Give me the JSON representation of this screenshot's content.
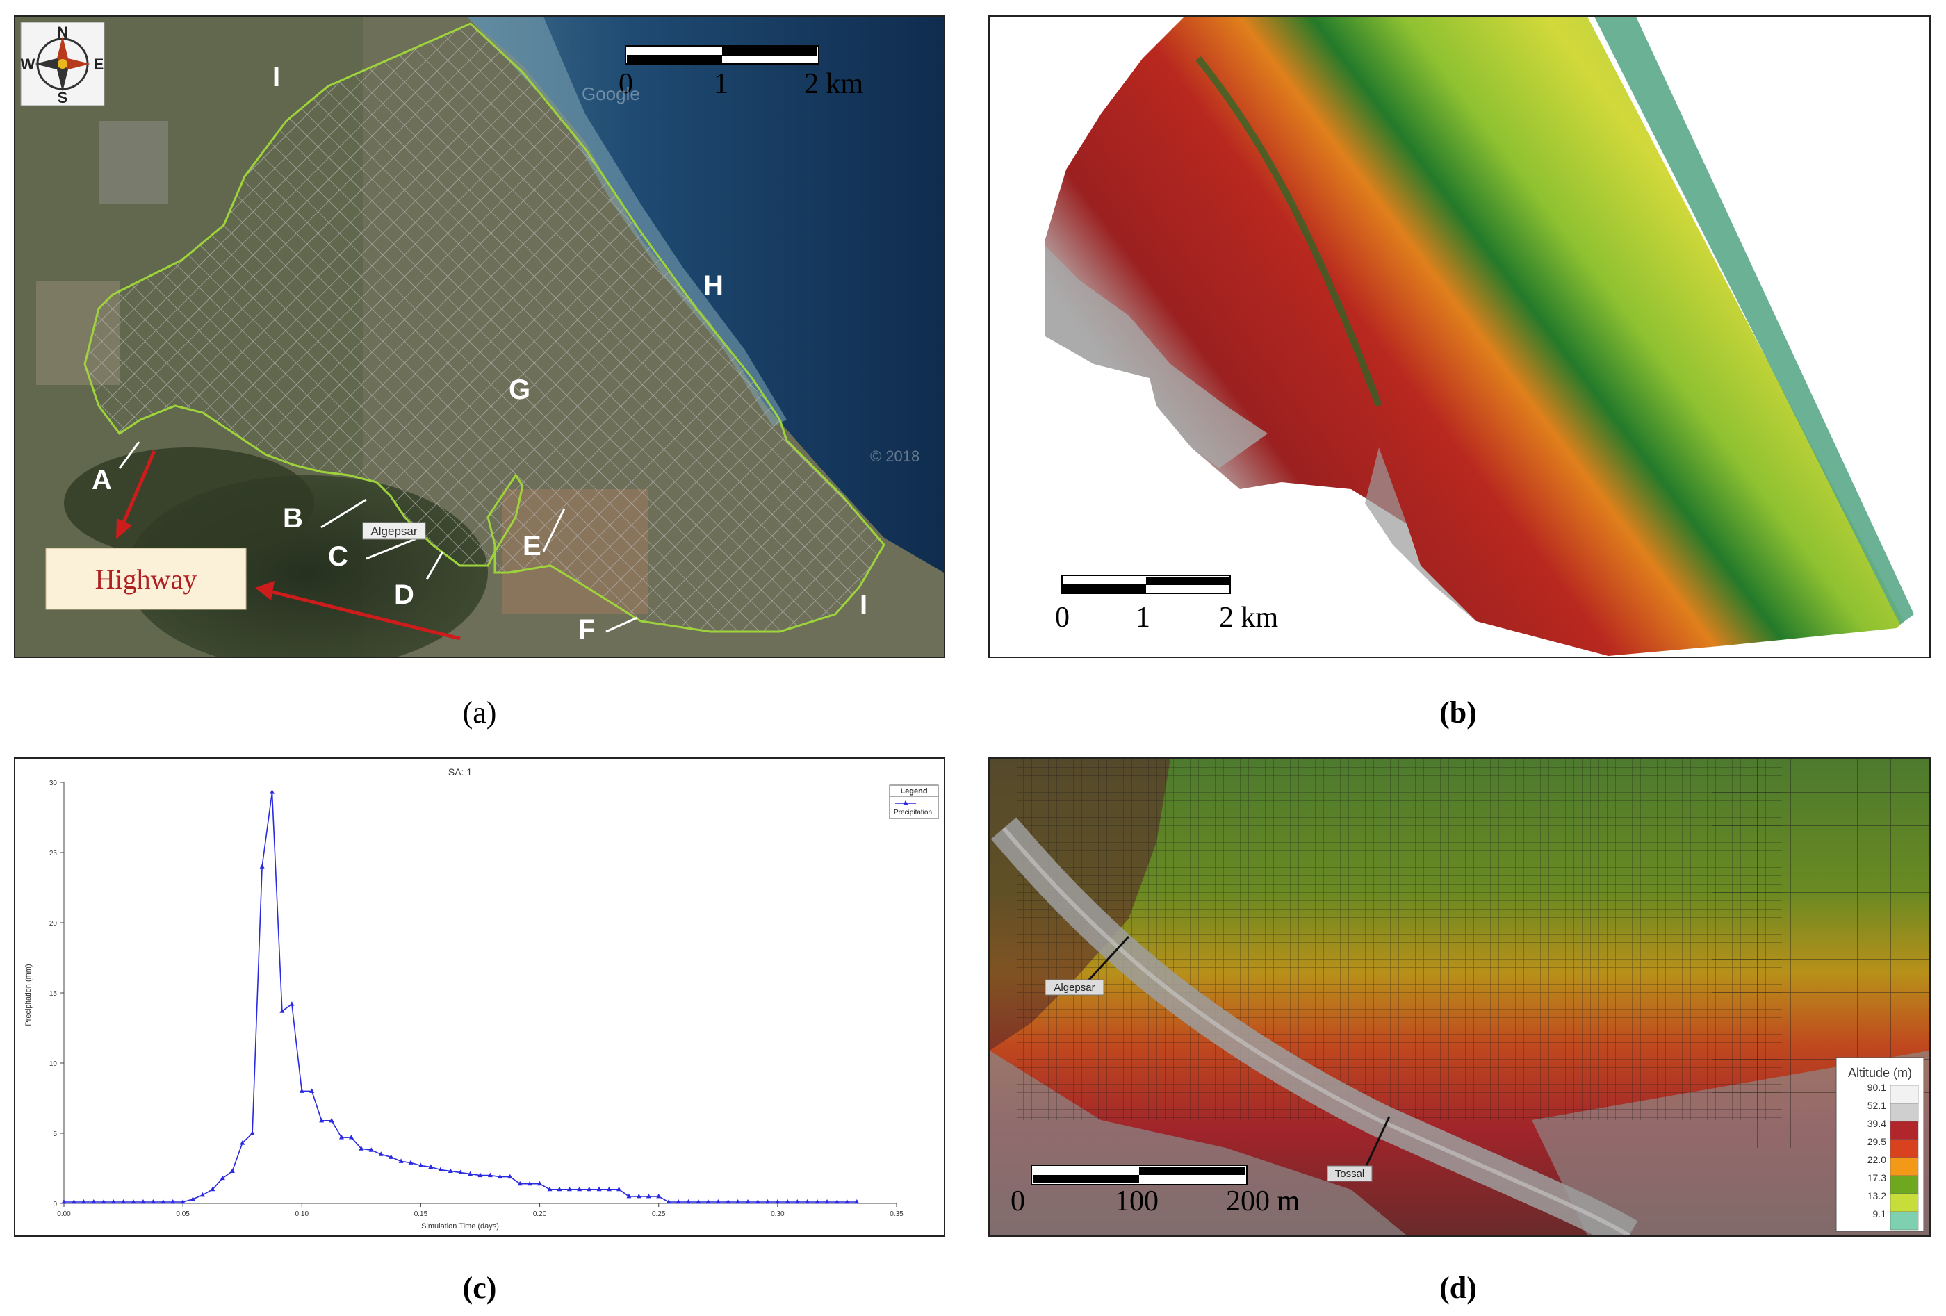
{
  "panel_a": {
    "compass": {
      "n": "N",
      "s": "S",
      "e": "E",
      "w": "W"
    },
    "scale": {
      "t0": "0",
      "t1": "1",
      "t2": "2 km"
    },
    "letters": {
      "A": "A",
      "B": "B",
      "C": "C",
      "D": "D",
      "E": "E",
      "F": "F",
      "G": "G",
      "H": "H",
      "I1": "I",
      "I2": "I"
    },
    "place_tag": "Algepsar",
    "highway_label": "Highway",
    "watermark_copyright": "© 2018",
    "watermark_google": "Google"
  },
  "panel_b": {
    "scale": {
      "t0": "0",
      "t1": "1",
      "t2": "2 km"
    }
  },
  "panel_d": {
    "labels": {
      "algepsar": "Algepsar",
      "tossal": "Tossal"
    },
    "legend_title": "Altitude (m)",
    "legend_values": [
      "90.1",
      "52.1",
      "39.4",
      "29.5",
      "22.0",
      "17.3",
      "13.2",
      "9.1"
    ],
    "legend_colors": [
      "#f2f2f2",
      "#cfcfcf",
      "#b0262a",
      "#d8421e",
      "#f29a18",
      "#6ea81f",
      "#c7de3a",
      "#7fd0b0"
    ],
    "scale": {
      "t0": "0",
      "t1": "100",
      "t2": "200 m"
    }
  },
  "captions": {
    "a": "(a)",
    "b": "(b)",
    "c": "(c)",
    "d": "(d)"
  },
  "chart_data": {
    "type": "line",
    "title": "SA: 1",
    "xlabel": "Simulation Time (days)",
    "ylabel": "Precipitation (mm)",
    "xlim": [
      0,
      0.35
    ],
    "ylim": [
      0,
      30
    ],
    "xticks": [
      "0.00",
      "0.05",
      "0.10",
      "0.15",
      "0.20",
      "0.25",
      "0.30",
      "0.35"
    ],
    "yticks": [
      "0",
      "5",
      "10",
      "15",
      "20",
      "25",
      "30"
    ],
    "legend": {
      "title": "Legend",
      "entries": [
        "Precipitation"
      ],
      "placement": "top-right"
    },
    "series": [
      {
        "name": "Precipitation",
        "color": "#2a2ae0",
        "x": [
          0,
          0.0042,
          0.0083,
          0.0125,
          0.0167,
          0.0208,
          0.025,
          0.0292,
          0.0333,
          0.0375,
          0.0417,
          0.0458,
          0.05,
          0.0542,
          0.0583,
          0.0625,
          0.0667,
          0.0708,
          0.075,
          0.0792,
          0.0833,
          0.0875,
          0.0917,
          0.0958,
          0.1,
          0.1042,
          0.1083,
          0.1125,
          0.1167,
          0.1208,
          0.125,
          0.1292,
          0.1333,
          0.1375,
          0.1417,
          0.1458,
          0.15,
          0.1542,
          0.1583,
          0.1625,
          0.1667,
          0.1708,
          0.175,
          0.1792,
          0.1833,
          0.1875,
          0.1917,
          0.1958,
          0.2,
          0.2042,
          0.2083,
          0.2125,
          0.2167,
          0.2208,
          0.225,
          0.2292,
          0.2333,
          0.2375,
          0.2417,
          0.2458,
          0.25,
          0.2542,
          0.2583,
          0.2625,
          0.2667,
          0.2708,
          0.275,
          0.2792,
          0.2833,
          0.2875,
          0.2917,
          0.2958,
          0.3,
          0.3042,
          0.3083,
          0.3125,
          0.3167,
          0.3208,
          0.325,
          0.3292,
          0.3333
        ],
        "values": [
          0.1,
          0.1,
          0.1,
          0.1,
          0.1,
          0.1,
          0.1,
          0.1,
          0.1,
          0.1,
          0.1,
          0.1,
          0.1,
          0.3,
          0.6,
          1.0,
          1.8,
          2.3,
          4.3,
          5.0,
          24.0,
          29.3,
          13.7,
          14.2,
          8.0,
          8.0,
          5.9,
          5.9,
          4.7,
          4.7,
          3.9,
          3.8,
          3.5,
          3.3,
          3.0,
          2.9,
          2.7,
          2.6,
          2.4,
          2.3,
          2.2,
          2.1,
          2.0,
          2.0,
          1.9,
          1.9,
          1.4,
          1.4,
          1.4,
          1.0,
          1.0,
          1.0,
          1.0,
          1.0,
          1.0,
          1.0,
          1.0,
          0.5,
          0.5,
          0.5,
          0.5,
          0.1,
          0.1,
          0.1,
          0.1,
          0.1,
          0.1,
          0.1,
          0.1,
          0.1,
          0.1,
          0.1,
          0.1,
          0.1,
          0.1,
          0.1,
          0.1,
          0.1,
          0.1,
          0.1,
          0.1
        ]
      }
    ]
  }
}
